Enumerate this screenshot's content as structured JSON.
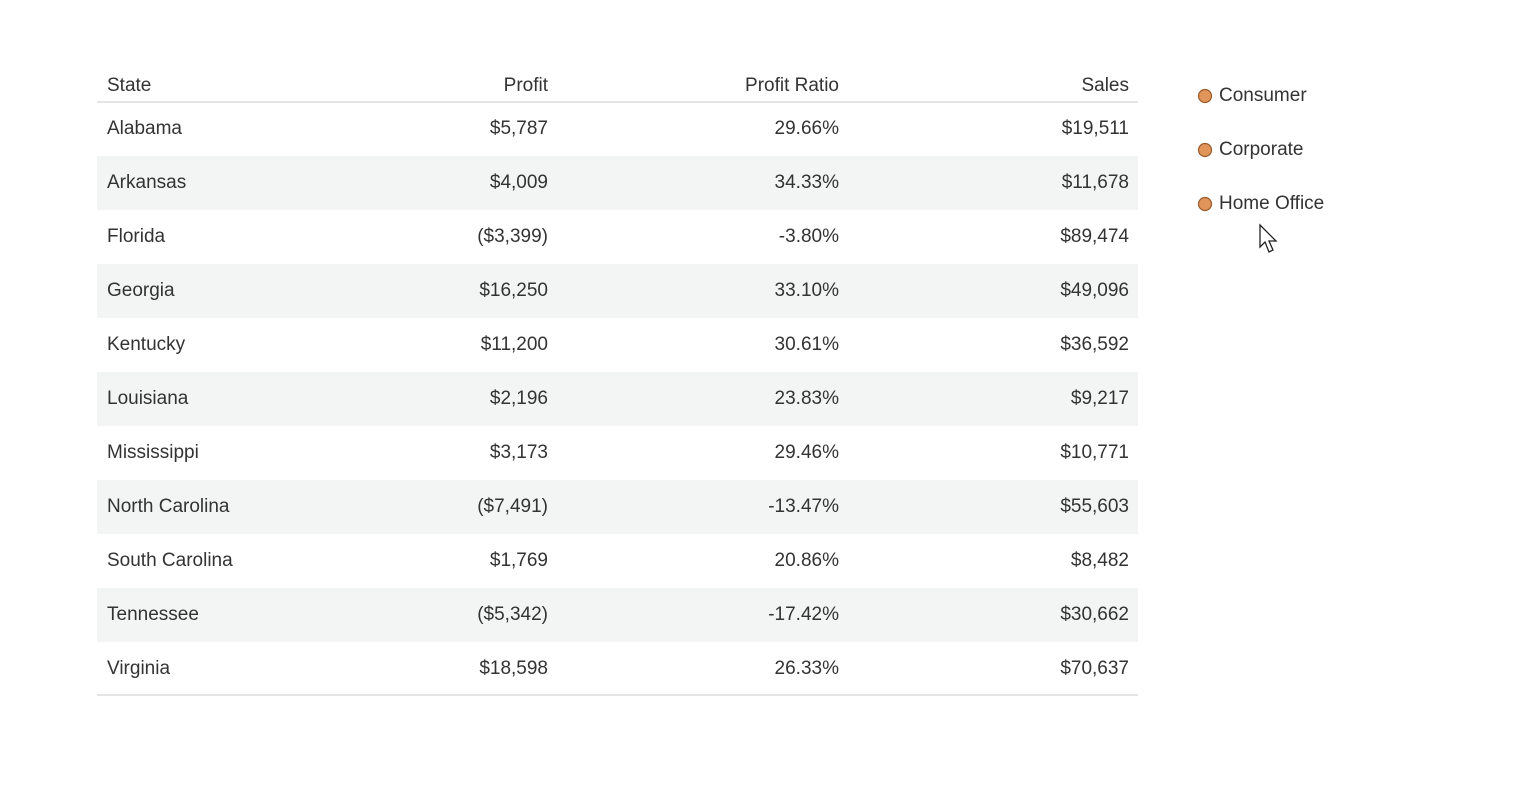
{
  "table": {
    "header": [
      "State",
      "Profit",
      "Profit Ratio",
      "Sales"
    ],
    "rows": [
      [
        "Alabama",
        "$5,787",
        "29.66%",
        "$19,511"
      ],
      [
        "Arkansas",
        "$4,009",
        "34.33%",
        "$11,678"
      ],
      [
        "Florida",
        "($3,399)",
        "-3.80%",
        "$89,474"
      ],
      [
        "Georgia",
        "$16,250",
        "33.10%",
        "$49,096"
      ],
      [
        "Kentucky",
        "$11,200",
        "30.61%",
        "$36,592"
      ],
      [
        "Louisiana",
        "$2,196",
        "23.83%",
        "$9,217"
      ],
      [
        "Mississippi",
        "$3,173",
        "29.46%",
        "$10,771"
      ],
      [
        "North Carolina",
        "($7,491)",
        "-13.47%",
        "$55,603"
      ],
      [
        "South Carolina",
        "$1,769",
        "20.86%",
        "$8,482"
      ],
      [
        "Tennessee",
        "($5,342)",
        "-17.42%",
        "$30,662"
      ],
      [
        "Virginia",
        "$18,598",
        "26.33%",
        "$70,637"
      ]
    ]
  },
  "legend": {
    "items": [
      "Consumer",
      "Corporate",
      "Home Office"
    ]
  }
}
